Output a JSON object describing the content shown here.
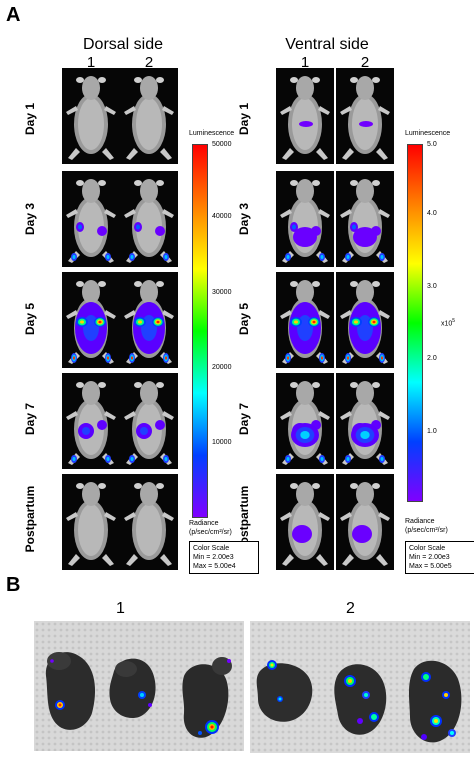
{
  "panel_a": {
    "letter": "A",
    "dorsal": {
      "title": "Dorsal side",
      "cols": [
        "1",
        "2"
      ]
    },
    "ventral": {
      "title": "Ventral side",
      "cols": [
        "1",
        "2"
      ]
    },
    "rows": [
      "Day 1",
      "Day 3",
      "Day 5",
      "Day 7",
      "Postpartum"
    ],
    "dorsal_scale": {
      "title": "Luminescence",
      "ticks": [
        "50000",
        "40000",
        "30000",
        "20000",
        "10000"
      ],
      "radiance": [
        "Radiance",
        "(p/sec/cm²/sr)"
      ],
      "color_scale": [
        "Color Scale",
        "Min = 2.00e3",
        "Max = 5.00e4"
      ]
    },
    "ventral_scale": {
      "title": "Luminescence",
      "ticks": [
        "5.0",
        "4.0",
        "3.0",
        "2.0",
        "1.0"
      ],
      "unit": "x10",
      "unit_exp": "5",
      "radiance": [
        "Radiance",
        "(p/sec/cm²/sr)"
      ],
      "color_scale": [
        "Color Scale",
        "Min = 2.00e3",
        "Max = 5.00e5"
      ]
    }
  },
  "panel_b": {
    "letter": "B",
    "groups": [
      "1",
      "2"
    ]
  },
  "colors": {
    "scale_gradient": [
      "#ff0000",
      "#ff8000",
      "#ffff00",
      "#00ff00",
      "#00ffff",
      "#0040ff",
      "#8000ff"
    ]
  }
}
